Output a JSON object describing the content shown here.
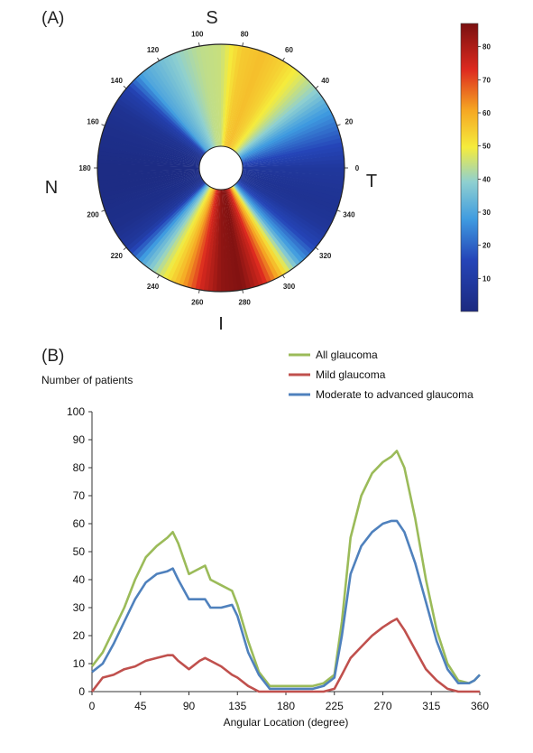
{
  "panel_a": {
    "label": "(A)",
    "directions": {
      "superior": "S",
      "inferior": "I",
      "nasal": "N",
      "temporal": "T"
    },
    "colorbar": {
      "min": 0,
      "max": 87,
      "ticks": [
        10,
        20,
        30,
        40,
        50,
        60,
        70,
        80
      ]
    },
    "colors": {
      "low": "#1f2f8a",
      "mid": "#f5e43a",
      "high": "#8e1414"
    }
  },
  "panel_b": {
    "label": "(B)",
    "ylabel": "Number of patients"
  },
  "chart_data": [
    {
      "type": "heatmap",
      "title": "",
      "projection": "polar",
      "angle_unit": "degree",
      "angle_ticks": [
        0,
        20,
        40,
        60,
        80,
        100,
        120,
        140,
        160,
        180,
        200,
        220,
        240,
        260,
        280,
        300,
        320,
        340
      ],
      "angles": [
        0,
        10,
        20,
        30,
        40,
        50,
        60,
        70,
        80,
        90,
        100,
        110,
        120,
        130,
        140,
        150,
        160,
        170,
        180,
        190,
        200,
        210,
        220,
        230,
        240,
        250,
        260,
        270,
        280,
        290,
        300,
        310,
        320,
        330,
        340,
        350
      ],
      "values": [
        8,
        15,
        22,
        30,
        40,
        48,
        54,
        57,
        55,
        45,
        44,
        40,
        35,
        30,
        12,
        5,
        3,
        2,
        1,
        1,
        2,
        3,
        8,
        30,
        45,
        58,
        74,
        84,
        86,
        75,
        55,
        30,
        15,
        7,
        5,
        6
      ],
      "colorbar_range": [
        0,
        87
      ],
      "colorbar_ticks": [
        10,
        20,
        30,
        40,
        50,
        60,
        70,
        80
      ]
    },
    {
      "type": "line",
      "title": "",
      "xlabel": "Angular Location (degree)",
      "ylabel": "Number of patients",
      "xlim": [
        0,
        360
      ],
      "ylim": [
        0,
        100
      ],
      "xticks": [
        0,
        45,
        90,
        135,
        180,
        225,
        270,
        315,
        360
      ],
      "yticks": [
        0,
        10,
        20,
        30,
        40,
        50,
        60,
        70,
        80,
        90,
        100
      ],
      "legend_position": "top-right",
      "grid": false,
      "x": [
        0,
        10,
        20,
        30,
        40,
        50,
        60,
        70,
        75,
        80,
        90,
        100,
        105,
        110,
        120,
        130,
        135,
        145,
        155,
        165,
        175,
        185,
        195,
        205,
        215,
        225,
        232,
        240,
        250,
        260,
        270,
        278,
        283,
        290,
        300,
        310,
        320,
        330,
        340,
        350,
        355,
        360
      ],
      "series": [
        {
          "name": "All glaucoma",
          "color": "#9bbb59",
          "values": [
            9,
            14,
            22,
            30,
            40,
            48,
            52,
            55,
            57,
            53,
            42,
            44,
            45,
            40,
            38,
            36,
            31,
            18,
            7,
            2,
            2,
            2,
            2,
            2,
            3,
            6,
            25,
            55,
            70,
            78,
            82,
            84,
            86,
            80,
            62,
            40,
            22,
            10,
            4,
            3,
            4,
            6
          ]
        },
        {
          "name": "Mild glaucoma",
          "color": "#c0504d",
          "values": [
            0,
            5,
            6,
            8,
            9,
            11,
            12,
            13,
            13,
            11,
            8,
            11,
            12,
            11,
            9,
            6,
            5,
            2,
            0,
            0,
            0,
            0,
            0,
            0,
            0,
            1,
            6,
            12,
            16,
            20,
            23,
            25,
            26,
            22,
            15,
            8,
            4,
            1,
            0,
            0,
            0,
            0
          ]
        },
        {
          "name": "Moderate to advanced  glaucoma",
          "color": "#4f81bd",
          "values": [
            7,
            10,
            17,
            25,
            33,
            39,
            42,
            43,
            44,
            40,
            33,
            33,
            33,
            30,
            30,
            31,
            27,
            14,
            6,
            1,
            1,
            1,
            1,
            1,
            2,
            5,
            20,
            42,
            52,
            57,
            60,
            61,
            61,
            57,
            46,
            32,
            18,
            8,
            3,
            3,
            4,
            6
          ]
        }
      ]
    }
  ]
}
